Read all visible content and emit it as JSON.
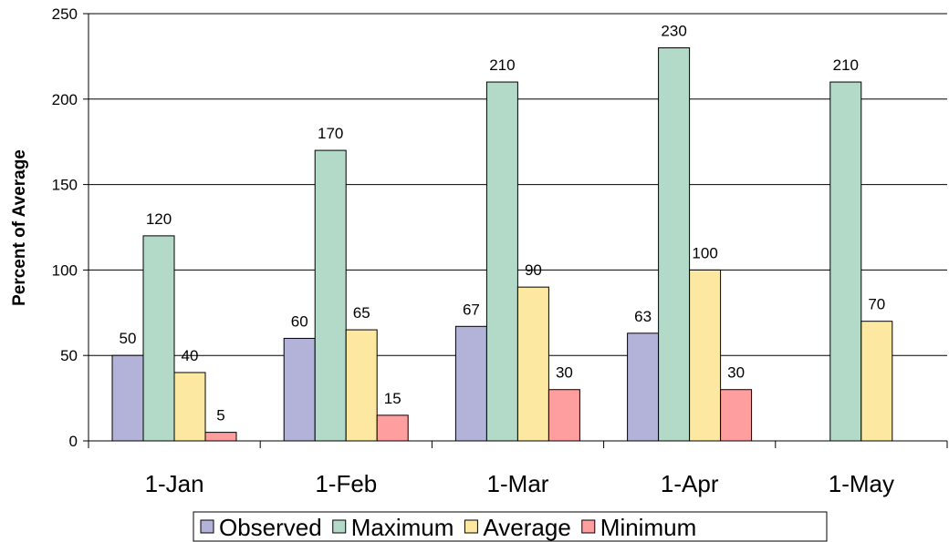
{
  "chart_data": {
    "type": "bar",
    "categories": [
      "1-Jan",
      "1-Feb",
      "1-Mar",
      "1-Apr",
      "1-May"
    ],
    "series": [
      {
        "name": "Observed",
        "values": [
          50,
          60,
          67,
          63,
          null
        ],
        "color": "#B3B3DA"
      },
      {
        "name": "Maximum",
        "values": [
          120,
          170,
          210,
          230,
          210
        ],
        "color": "#B3D9C8"
      },
      {
        "name": "Average",
        "values": [
          40,
          65,
          90,
          100,
          70
        ],
        "color": "#FDE8A1"
      },
      {
        "name": "Minimum",
        "values": [
          5,
          15,
          30,
          30,
          null
        ],
        "color": "#FF9E9E"
      }
    ],
    "ylabel": "Percent of Average",
    "ylim": [
      0,
      250
    ],
    "yticks": [
      0,
      50,
      100,
      150,
      200,
      250
    ],
    "grid": true,
    "legend": "bottom"
  }
}
